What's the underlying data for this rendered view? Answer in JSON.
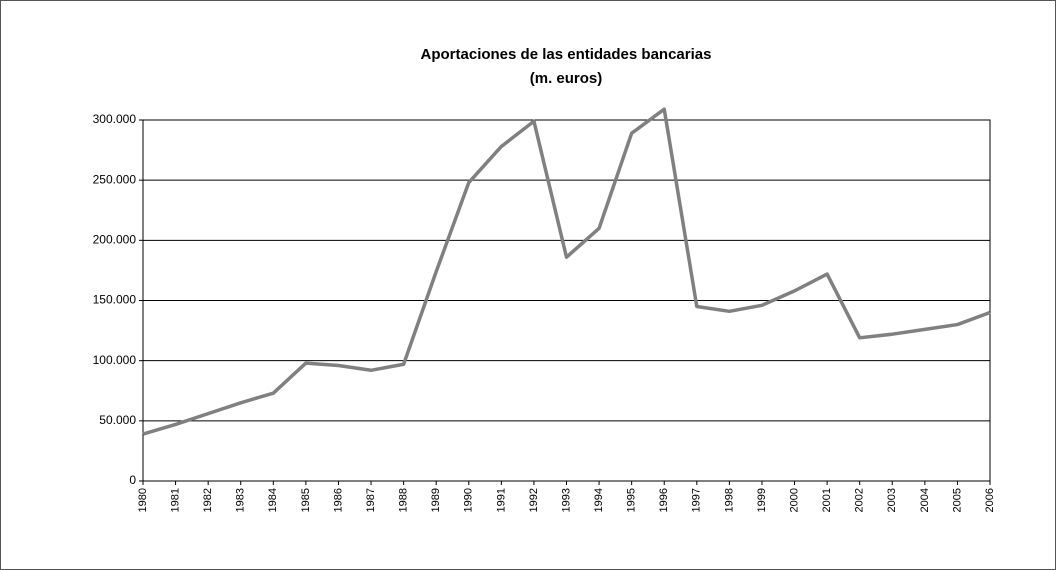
{
  "chart_data": {
    "type": "line",
    "title": "Aportaciones de las entidades bancarias",
    "subtitle": "(m. euros)",
    "categories": [
      "1980",
      "1981",
      "1982",
      "1983",
      "1984",
      "1985",
      "1986",
      "1987",
      "1988",
      "1989",
      "1990",
      "1991",
      "1992",
      "1993",
      "1994",
      "1995",
      "1996",
      "1997",
      "1998",
      "1999",
      "2000",
      "2001",
      "2002",
      "2003",
      "2004",
      "2005",
      "2006"
    ],
    "values": [
      39000,
      47000,
      56000,
      65000,
      73000,
      98000,
      96000,
      92000,
      97000,
      174000,
      248000,
      278000,
      299000,
      186000,
      210000,
      289000,
      309000,
      145000,
      141000,
      146000,
      158000,
      172000,
      119000,
      122000,
      126000,
      130000,
      140000
    ],
    "color": "#808080",
    "ylim": [
      0,
      300000
    ],
    "yticks": [
      0,
      {
        "value": 50000,
        "label": "50.000"
      },
      {
        "value": 100000,
        "label": "100.000"
      },
      {
        "value": 150000,
        "label": "150.000"
      },
      {
        "value": 200000,
        "label": "200.000"
      },
      {
        "value": 250000,
        "label": "250.000"
      },
      {
        "value": 300000,
        "label": "300.000"
      }
    ],
    "grid": true
  }
}
